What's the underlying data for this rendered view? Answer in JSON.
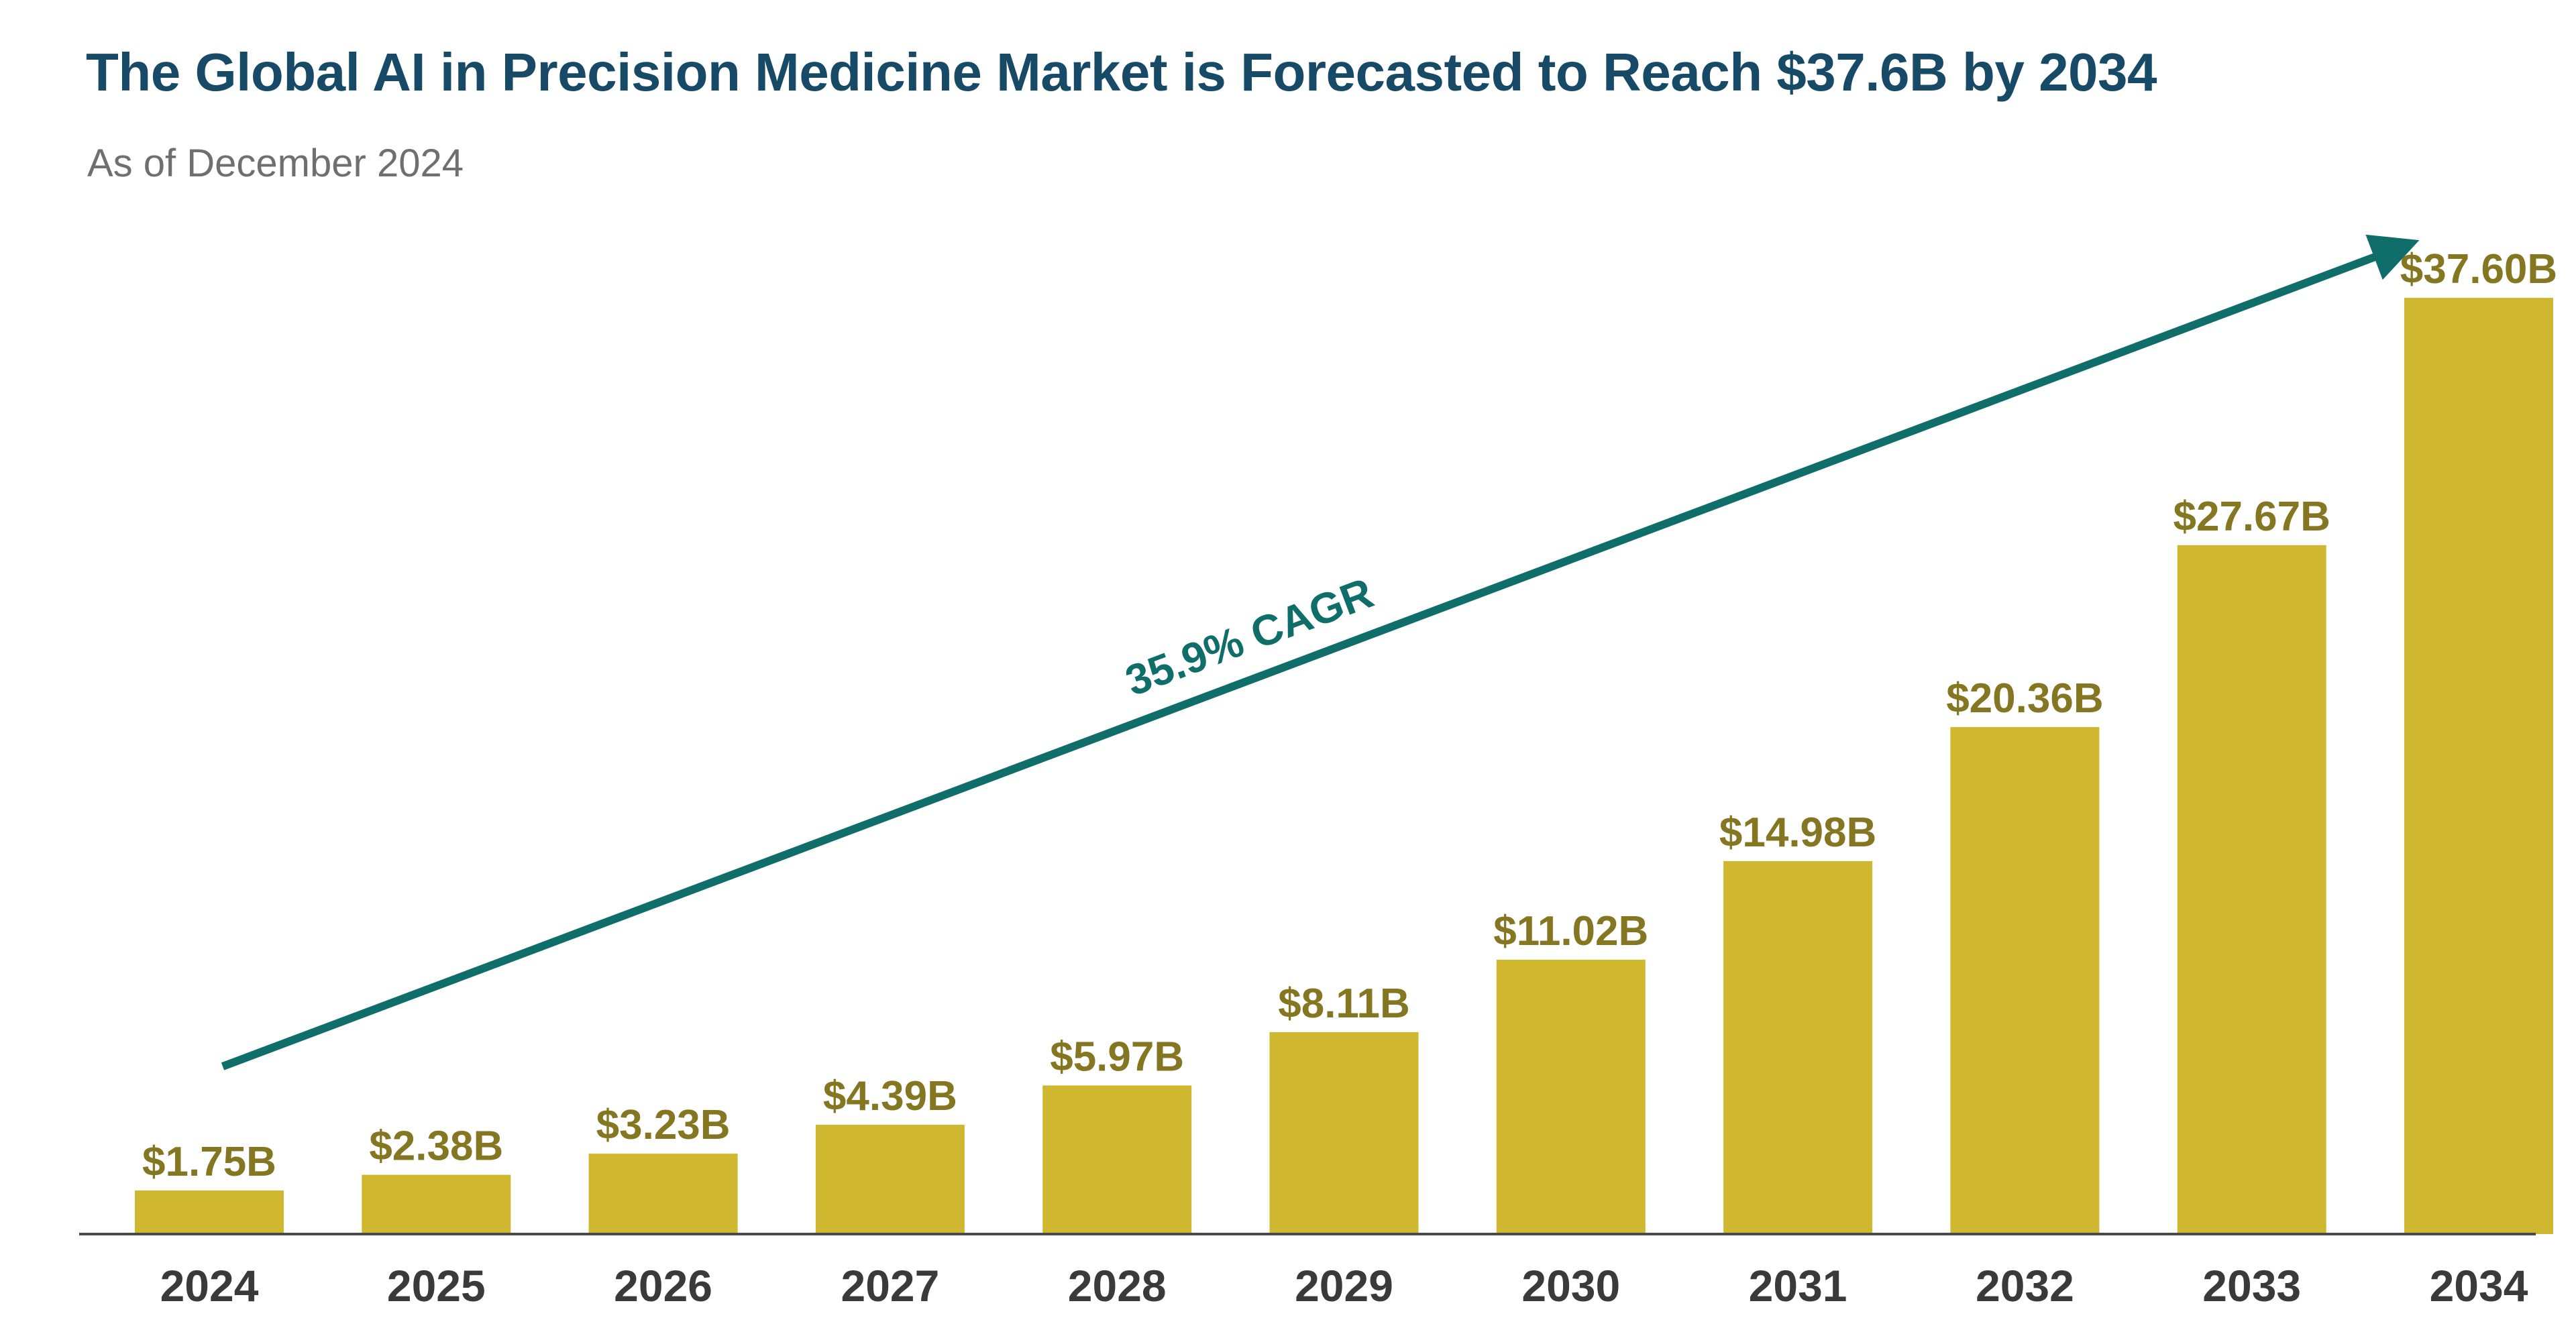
{
  "header": {
    "title": "The Global AI in Precision Medicine Market is Forecasted to Reach $37.6B by 2034",
    "subtitle": "As of December 2024"
  },
  "colors": {
    "title": "#174a67",
    "subtitle": "#6f6f6f",
    "bar": "#cfb82f",
    "value_label": "#857722",
    "tick_label": "#3a3a3a",
    "axis": "#4a4a4a",
    "trend_arrow": "#0f6e6a"
  },
  "chart_data": {
    "type": "bar",
    "title": "The Global AI in Precision Medicine Market is Forecasted to Reach $37.6B by 2034",
    "subtitle": "As of December 2024",
    "xlabel": "",
    "ylabel": "",
    "categories": [
      "2024",
      "2025",
      "2026",
      "2027",
      "2028",
      "2029",
      "2030",
      "2031",
      "2032",
      "2033",
      "2034"
    ],
    "values": [
      1.75,
      2.38,
      3.23,
      4.39,
      5.97,
      8.11,
      11.02,
      14.98,
      20.36,
      27.67,
      37.6
    ],
    "data_labels": [
      "$1.75B",
      "$2.38B",
      "$3.23B",
      "$4.39B",
      "$5.97B",
      "$8.11B",
      "$11.02B",
      "$14.98B",
      "$20.36B",
      "$27.67B",
      "$37.60B"
    ],
    "ylim": [
      0,
      40
    ],
    "grid": false,
    "y_axis_visible": false,
    "annotation": {
      "text": "35.9% CAGR",
      "shape": "arrow"
    }
  }
}
